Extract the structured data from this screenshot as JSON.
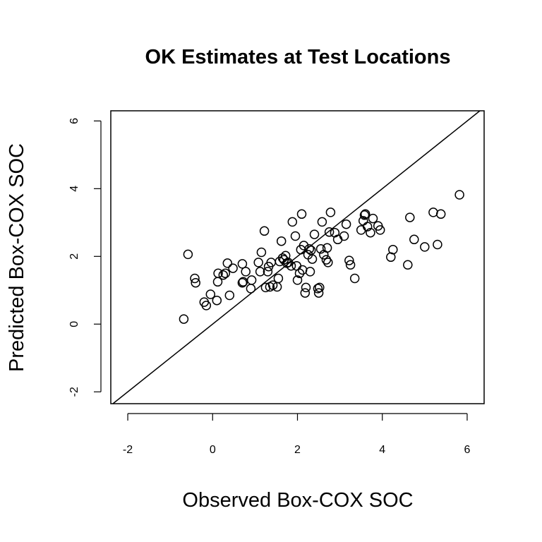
{
  "chart_data": {
    "type": "scatter",
    "title": "OK Estimates at Test Locations",
    "xlabel": "Observed Box-COX SOC",
    "ylabel": "Predicted Box-COX SOC",
    "xlim": [
      -2.4,
      6.4
    ],
    "ylim": [
      -2.35,
      6.3
    ],
    "xticks": [
      -2,
      0,
      2,
      4,
      6
    ],
    "yticks": [
      -2,
      0,
      2,
      4,
      6
    ],
    "grid": false,
    "reference_line": "y = x",
    "marker": "open-circle",
    "points": [
      [
        -0.68,
        0.15
      ],
      [
        -0.58,
        2.06
      ],
      [
        -0.42,
        1.35
      ],
      [
        -0.4,
        1.22
      ],
      [
        -0.2,
        0.65
      ],
      [
        -0.15,
        0.55
      ],
      [
        -0.05,
        0.88
      ],
      [
        0.1,
        0.7
      ],
      [
        0.12,
        1.25
      ],
      [
        0.13,
        1.5
      ],
      [
        0.25,
        1.45
      ],
      [
        0.3,
        1.5
      ],
      [
        0.35,
        1.8
      ],
      [
        0.4,
        0.85
      ],
      [
        0.48,
        1.65
      ],
      [
        0.7,
        1.78
      ],
      [
        0.7,
        1.22
      ],
      [
        0.72,
        1.25
      ],
      [
        0.78,
        1.55
      ],
      [
        0.9,
        1.05
      ],
      [
        0.92,
        1.3
      ],
      [
        1.08,
        1.82
      ],
      [
        1.12,
        1.55
      ],
      [
        1.15,
        2.12
      ],
      [
        1.22,
        2.75
      ],
      [
        1.25,
        1.08
      ],
      [
        1.3,
        1.55
      ],
      [
        1.32,
        1.7
      ],
      [
        1.35,
        1.1
      ],
      [
        1.38,
        1.82
      ],
      [
        1.42,
        1.15
      ],
      [
        1.52,
        1.1
      ],
      [
        1.55,
        1.35
      ],
      [
        1.58,
        1.85
      ],
      [
        1.62,
        2.45
      ],
      [
        1.65,
        1.95
      ],
      [
        1.68,
        1.9
      ],
      [
        1.72,
        2.02
      ],
      [
        1.75,
        1.8
      ],
      [
        1.78,
        1.82
      ],
      [
        1.85,
        1.72
      ],
      [
        1.88,
        3.02
      ],
      [
        1.95,
        2.6
      ],
      [
        1.98,
        1.72
      ],
      [
        2.0,
        1.3
      ],
      [
        2.05,
        1.5
      ],
      [
        2.08,
        2.2
      ],
      [
        2.1,
        3.25
      ],
      [
        2.12,
        1.6
      ],
      [
        2.15,
        2.32
      ],
      [
        2.18,
        0.92
      ],
      [
        2.2,
        1.08
      ],
      [
        2.25,
        2.05
      ],
      [
        2.28,
        2.22
      ],
      [
        2.3,
        1.55
      ],
      [
        2.32,
        2.18
      ],
      [
        2.35,
        1.92
      ],
      [
        2.4,
        2.65
      ],
      [
        2.48,
        1.05
      ],
      [
        2.5,
        0.92
      ],
      [
        2.52,
        1.08
      ],
      [
        2.55,
        2.22
      ],
      [
        2.58,
        3.02
      ],
      [
        2.62,
        2.05
      ],
      [
        2.68,
        1.9
      ],
      [
        2.7,
        2.25
      ],
      [
        2.72,
        1.82
      ],
      [
        2.75,
        2.72
      ],
      [
        2.78,
        3.3
      ],
      [
        2.88,
        2.7
      ],
      [
        2.95,
        2.5
      ],
      [
        3.1,
        2.6
      ],
      [
        3.15,
        2.95
      ],
      [
        3.22,
        1.88
      ],
      [
        3.25,
        1.75
      ],
      [
        3.35,
        1.35
      ],
      [
        3.5,
        2.78
      ],
      [
        3.55,
        3.05
      ],
      [
        3.58,
        3.22
      ],
      [
        3.6,
        3.25
      ],
      [
        3.65,
        2.88
      ],
      [
        3.72,
        2.7
      ],
      [
        3.78,
        3.12
      ],
      [
        3.9,
        2.9
      ],
      [
        3.95,
        2.78
      ],
      [
        4.2,
        1.98
      ],
      [
        4.25,
        2.2
      ],
      [
        4.6,
        1.75
      ],
      [
        4.65,
        3.15
      ],
      [
        4.75,
        2.5
      ],
      [
        5.0,
        2.28
      ],
      [
        5.2,
        3.3
      ],
      [
        5.3,
        2.35
      ],
      [
        5.38,
        3.25
      ],
      [
        5.82,
        3.82
      ]
    ]
  }
}
